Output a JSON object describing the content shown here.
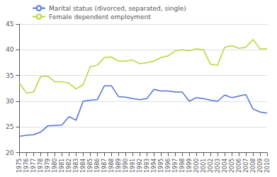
{
  "chart_data": {
    "type": "line",
    "x": [
      1975,
      1976,
      1977,
      1978,
      1979,
      1980,
      1981,
      1982,
      1983,
      1984,
      1985,
      1986,
      1987,
      1988,
      1989,
      1990,
      1991,
      1992,
      1993,
      1994,
      1995,
      1996,
      1997,
      1998,
      1999,
      2000,
      2001,
      2002,
      2003,
      2004,
      2005,
      2006,
      2007,
      2008,
      2009,
      2010
    ],
    "series": [
      {
        "name": "Marital status (divorced, separated, single)",
        "values": [
          23.2,
          23.4,
          23.5,
          24.0,
          25.2,
          25.3,
          25.4,
          27.0,
          26.3,
          30.0,
          30.2,
          30.3,
          33.0,
          33.0,
          30.9,
          30.8,
          30.5,
          30.3,
          30.5,
          32.3,
          32.0,
          32.0,
          31.8,
          31.8,
          30.0,
          30.7,
          30.5,
          30.2,
          30.0,
          31.2,
          30.7,
          31.0,
          31.3,
          28.5,
          27.9,
          27.7
        ]
      },
      {
        "name": "Female dependent employment",
        "values": [
          33.5,
          31.6,
          31.8,
          34.8,
          34.9,
          33.8,
          33.8,
          33.5,
          32.4,
          33.2,
          36.7,
          37.0,
          38.5,
          38.6,
          37.8,
          37.8,
          38.0,
          37.3,
          37.5,
          37.8,
          38.5,
          38.8,
          39.8,
          40.0,
          39.8,
          40.2,
          40.0,
          37.2,
          37.0,
          40.5,
          40.8,
          40.3,
          40.5,
          42.0,
          40.2,
          40.2
        ]
      }
    ],
    "xlim": [
      1975,
      2010
    ],
    "xticks": [
      1975,
      1976,
      1977,
      1978,
      1979,
      1980,
      1981,
      1982,
      1983,
      1984,
      1985,
      1986,
      1987,
      1988,
      1989,
      1990,
      1991,
      1992,
      1993,
      1994,
      1995,
      1996,
      1997,
      1998,
      1999,
      2000,
      2001,
      2002,
      2003,
      2004,
      2005,
      2006,
      2007,
      2008,
      2009,
      2010
    ],
    "ylim": [
      20,
      45
    ],
    "yticks": [
      20,
      25,
      30,
      35,
      40,
      45
    ],
    "grid": true,
    "legend": "upper left"
  }
}
